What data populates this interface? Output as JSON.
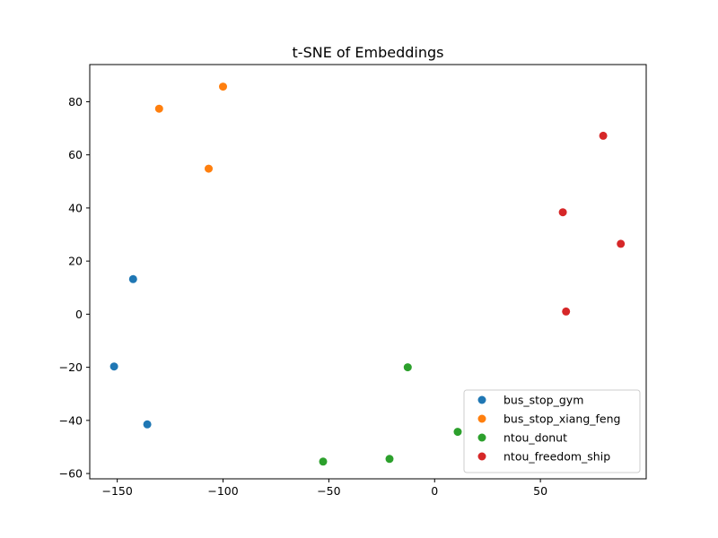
{
  "chart_data": {
    "type": "scatter",
    "title": "t-SNE of Embeddings",
    "xlabel": "",
    "ylabel": "",
    "xlim": [
      -163,
      100
    ],
    "ylim": [
      -62,
      94
    ],
    "xticks": [
      -150,
      -100,
      -50,
      0,
      50
    ],
    "yticks": [
      -60,
      -40,
      -20,
      0,
      20,
      40,
      60,
      80
    ],
    "xtick_labels": [
      "−150",
      "−100",
      "−50",
      "0",
      "50"
    ],
    "ytick_labels": [
      "−60",
      "−40",
      "−20",
      "0",
      "20",
      "40",
      "60",
      "80"
    ],
    "grid": false,
    "legend_position": "lower-right",
    "series": [
      {
        "name": "bus_stop_gym",
        "color": "#1f77b4",
        "points": [
          [
            -142.5,
            13.2
          ],
          [
            -151.5,
            -19.7
          ],
          [
            -135.8,
            -41.5
          ]
        ]
      },
      {
        "name": "bus_stop_xiang_feng",
        "color": "#ff7f0e",
        "points": [
          [
            -130.2,
            77.4
          ],
          [
            -100.0,
            85.7
          ],
          [
            -106.8,
            54.8
          ]
        ]
      },
      {
        "name": "ntou_donut",
        "color": "#2ca02c",
        "points": [
          [
            -12.7,
            -20.0
          ],
          [
            10.9,
            -44.3
          ],
          [
            -21.3,
            -54.5
          ],
          [
            -52.7,
            -55.5
          ]
        ]
      },
      {
        "name": "ntou_freedom_ship",
        "color": "#d62728",
        "points": [
          [
            79.7,
            67.2
          ],
          [
            60.6,
            38.4
          ],
          [
            88.0,
            26.5
          ],
          [
            62.1,
            1.0
          ]
        ]
      }
    ]
  }
}
